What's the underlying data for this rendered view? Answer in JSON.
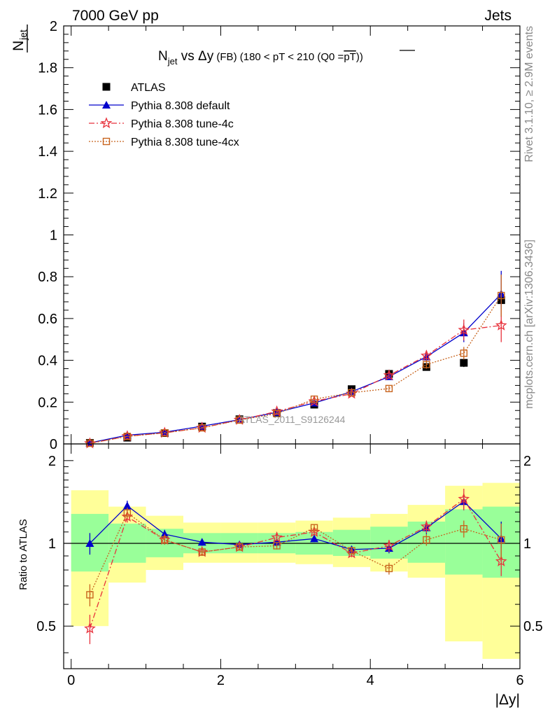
{
  "header": {
    "left": "7000 GeV pp",
    "right": "Jets"
  },
  "side_labels": {
    "rivet": "Rivet 3.1.10, ≥ 2.9M events",
    "mcplots": "mcplots.cern.ch [arXiv:1306.3436]"
  },
  "chart_data": [
    {
      "type": "line",
      "title": "N_jet vs Δy (FB) (180 < pT < 210 (Q0 = pT-bar))",
      "title_parts": {
        "n": "N",
        "jet": "jet",
        "vs": " vs ",
        "delta": "Δy",
        "fb": " (FB) ",
        "range": "(180 < pT < 210 (Q0 =",
        "pt": "pT",
        "close": "))"
      },
      "ylabel_parts": {
        "n": "N",
        "jet": "jet"
      },
      "xlabel": "|Δy|",
      "ylim": [
        0,
        2
      ],
      "xlim": [
        -0.1,
        6.0
      ],
      "yticks": [
        0,
        0.2,
        0.4,
        0.6,
        0.8,
        1,
        1.2,
        1.4,
        1.6,
        1.8,
        2
      ],
      "ytick_labels": [
        "0",
        "0.2",
        "0.4",
        "0.6",
        "0.8",
        "1",
        "1.2",
        "1.4",
        "1.6",
        "1.8",
        "2"
      ],
      "watermark": "ATLAS_2011_S9126244",
      "legend_position": "top-left",
      "x": [
        0.25,
        0.75,
        1.25,
        1.75,
        2.25,
        2.75,
        3.25,
        3.75,
        4.25,
        4.75,
        5.25,
        5.75
      ],
      "series": [
        {
          "name": "ATLAS",
          "color": "#000000",
          "marker": "square-filled",
          "values": [
            0.005,
            0.03,
            0.052,
            0.083,
            0.118,
            0.148,
            0.188,
            0.262,
            0.335,
            0.368,
            0.388,
            0.688
          ],
          "errors": [
            0.001,
            0.002,
            0.003,
            0.004,
            0.005,
            0.006,
            0.007,
            0.009,
            0.012,
            0.015,
            0.02,
            0.03
          ]
        },
        {
          "name": "Pythia 8.308 default",
          "color": "#0000cc",
          "marker": "triangle-filled",
          "line": "solid",
          "values": [
            0.005,
            0.042,
            0.056,
            0.085,
            0.116,
            0.151,
            0.196,
            0.25,
            0.322,
            0.417,
            0.532,
            0.718
          ],
          "errors": [
            0.001,
            0.002,
            0.003,
            0.004,
            0.005,
            0.006,
            0.007,
            0.01,
            0.015,
            0.025,
            0.045,
            0.11
          ]
        },
        {
          "name": "Pythia 8.308 tune-4c",
          "color": "#e8323c",
          "marker": "star-open",
          "line": "dashdot",
          "values": [
            0.0025,
            0.037,
            0.053,
            0.077,
            0.115,
            0.155,
            0.204,
            0.24,
            0.328,
            0.422,
            0.545,
            0.567
          ],
          "errors": [
            0.001,
            0.002,
            0.003,
            0.004,
            0.005,
            0.006,
            0.007,
            0.01,
            0.015,
            0.025,
            0.05,
            0.08
          ]
        },
        {
          "name": "Pythia 8.308 tune-4cx",
          "color": "#c8641e",
          "marker": "square-open",
          "line": "dotted",
          "values": [
            0.0033,
            0.036,
            0.053,
            0.077,
            0.114,
            0.145,
            0.214,
            0.245,
            0.265,
            0.38,
            0.434,
            0.71
          ],
          "errors": [
            0.001,
            0.002,
            0.003,
            0.004,
            0.005,
            0.006,
            0.007,
            0.01,
            0.012,
            0.02,
            0.03,
            0.1
          ]
        }
      ]
    },
    {
      "type": "line",
      "ylabel": "Ratio to ATLAS",
      "xlabel": "|Δy|",
      "ylim": [
        0.35,
        2.3
      ],
      "xlim": [
        -0.1,
        6.0
      ],
      "yscale": "log",
      "yticks": [
        0.5,
        1,
        2
      ],
      "ytick_labels": [
        "0.5",
        "1",
        "2"
      ],
      "xticks": [
        0,
        2,
        4,
        6
      ],
      "xtick_labels": [
        "0",
        "2",
        "4",
        "6"
      ],
      "x": [
        0.25,
        0.75,
        1.25,
        1.75,
        2.25,
        2.75,
        3.25,
        3.75,
        4.25,
        4.75,
        5.25,
        5.75
      ],
      "bands": {
        "edges": [
          0,
          0.5,
          1.0,
          1.5,
          2.0,
          2.5,
          3.0,
          3.5,
          4.0,
          4.5,
          5.0,
          5.5,
          6.0
        ],
        "inner_color": "#99ff99",
        "outer_color": "#ffff99",
        "inner": [
          [
            0.79,
            1.28
          ],
          [
            0.85,
            1.18
          ],
          [
            0.89,
            1.13
          ],
          [
            0.92,
            1.09
          ],
          [
            0.92,
            1.09
          ],
          [
            0.92,
            1.09
          ],
          [
            0.91,
            1.1
          ],
          [
            0.9,
            1.12
          ],
          [
            0.88,
            1.15
          ],
          [
            0.85,
            1.2
          ],
          [
            0.77,
            1.33
          ],
          [
            0.75,
            1.36
          ]
        ],
        "outer": [
          [
            0.5,
            1.56
          ],
          [
            0.72,
            1.36
          ],
          [
            0.8,
            1.26
          ],
          [
            0.85,
            1.19
          ],
          [
            0.85,
            1.19
          ],
          [
            0.85,
            1.19
          ],
          [
            0.84,
            1.21
          ],
          [
            0.82,
            1.24
          ],
          [
            0.79,
            1.28
          ],
          [
            0.75,
            1.38
          ],
          [
            0.44,
            1.62
          ],
          [
            0.38,
            1.66
          ]
        ]
      },
      "series": [
        {
          "name": "Pythia 8.308 default",
          "color": "#0000cc",
          "values": [
            1.0,
            1.37,
            1.08,
            1.01,
            0.99,
            1.01,
            1.04,
            0.95,
            0.96,
            1.14,
            1.42,
            1.04
          ],
          "errors": [
            0.09,
            0.06,
            0.04,
            0.03,
            0.02,
            0.02,
            0.03,
            0.03,
            0.04,
            0.06,
            0.1,
            0.16
          ]
        },
        {
          "name": "Pythia 8.308 tune-4c",
          "color": "#e8323c",
          "values": [
            0.49,
            1.25,
            1.03,
            0.93,
            0.97,
            1.05,
            1.1,
            0.92,
            0.98,
            1.15,
            1.45,
            0.86
          ],
          "errors": [
            0.06,
            0.06,
            0.04,
            0.03,
            0.02,
            0.03,
            0.03,
            0.03,
            0.05,
            0.06,
            0.13,
            0.1
          ]
        },
        {
          "name": "Pythia 8.308 tune-4cx",
          "color": "#c8641e",
          "values": [
            0.65,
            1.29,
            1.03,
            0.93,
            0.97,
            0.98,
            1.14,
            0.94,
            0.81,
            1.03,
            1.13,
            1.03
          ],
          "errors": [
            0.06,
            0.06,
            0.04,
            0.03,
            0.02,
            0.03,
            0.03,
            0.03,
            0.04,
            0.05,
            0.08,
            0.15
          ]
        }
      ]
    }
  ]
}
